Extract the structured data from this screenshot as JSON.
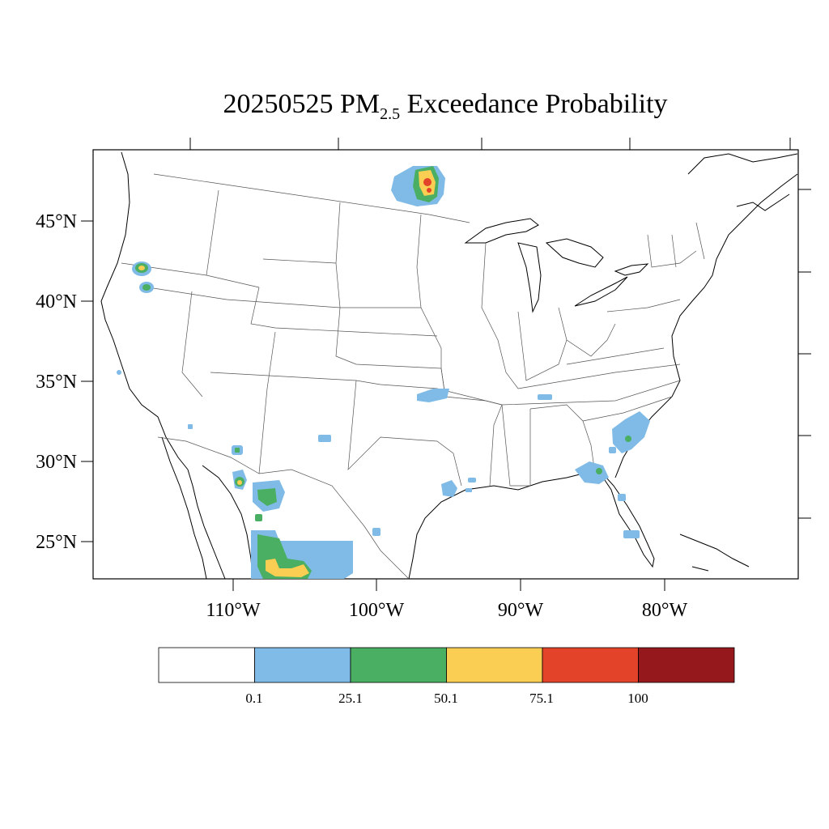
{
  "title": {
    "date": "20250525",
    "pm": "PM",
    "sub": "2.5",
    "rest": "Exceedance Probability"
  },
  "axes": {
    "lat_labels": [
      "45°N",
      "40°N",
      "35°N",
      "30°N",
      "25°N"
    ],
    "lon_labels": [
      "110°W",
      "100°W",
      "90°W",
      "80°W"
    ]
  },
  "colorbar": {
    "colors": [
      "#ffffff",
      "#7fbbe6",
      "#4aaf62",
      "#f9ce52",
      "#e34329",
      "#95181c"
    ],
    "labels": [
      "0.1",
      "25.1",
      "50.1",
      "75.1",
      "100"
    ]
  },
  "blobs": [
    {
      "name": "nd-mn-fire",
      "lon": -96.3,
      "lat": 47.5,
      "level": 4
    },
    {
      "name": "oregon-fire",
      "lon": -120.6,
      "lat": 42.2,
      "level": 3
    },
    {
      "name": "oregon-fire-2",
      "lon": -120.5,
      "lat": 41.0,
      "level": 2
    },
    {
      "name": "oklahoma",
      "lon": -96.0,
      "lat": 34.5,
      "level": 1
    },
    {
      "name": "carolina",
      "lon": -80.6,
      "lat": 33.0,
      "level": 2
    },
    {
      "name": "georgia",
      "lon": -82.6,
      "lat": 30.6,
      "level": 2
    },
    {
      "name": "chihuahua",
      "lon": -107.7,
      "lat": 27.0,
      "level": 3
    },
    {
      "name": "sonora",
      "lon": -110.5,
      "lat": 29.3,
      "level": 3
    }
  ]
}
